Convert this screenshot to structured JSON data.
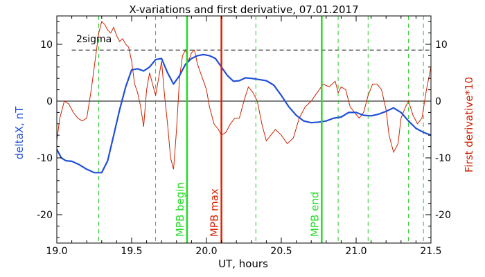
{
  "chart_data": {
    "type": "line",
    "title": "X-variations and first derivative, 07.01.2017",
    "xlabel": "UT, hours",
    "ylabel_left": "deltaX, nT",
    "ylabel_right": "First derivative*10",
    "xlim": [
      19.0,
      21.5
    ],
    "ylim": [
      -25,
      15
    ],
    "x_ticks": [
      {
        "value": 19.0,
        "label": "19.0"
      },
      {
        "value": 19.5,
        "label": "19.5"
      },
      {
        "value": 20.0,
        "label": "20.0"
      },
      {
        "value": 20.5,
        "label": "20.5"
      },
      {
        "value": 21.0,
        "label": "21.0"
      },
      {
        "value": 21.5,
        "label": "21.5"
      }
    ],
    "y_ticks": [
      {
        "value": 10,
        "label": "10"
      },
      {
        "value": 0,
        "label": "0"
      },
      {
        "value": -10,
        "label": "-10"
      },
      {
        "value": -20,
        "label": "-20"
      }
    ],
    "colors": {
      "deltaX": "#1f4fd6",
      "derivative": "#cc2200",
      "mpb_begin": "#22dd22",
      "mpb_max": "#dd2200",
      "mpb_end": "#22dd22",
      "dashed_green": "#22cc22",
      "axis": "#000000"
    },
    "threshold": {
      "label": "2sigma",
      "value": 9.0
    },
    "zero_line": 0,
    "vertical_lines": [
      {
        "label": "MPB begin",
        "x": 19.87,
        "color_key": "mpb_begin"
      },
      {
        "label": "MPB max",
        "x": 20.1,
        "color_key": "mpb_max"
      },
      {
        "label": "MPB end",
        "x": 20.77,
        "color_key": "mpb_end"
      }
    ],
    "dashed_verticals": [
      19.28,
      19.66,
      20.33,
      20.88,
      21.08,
      21.35,
      21.45
    ],
    "series": [
      {
        "key": "deltaX",
        "axis": "left",
        "x": [
          19.0,
          19.03,
          19.06,
          19.1,
          19.15,
          19.2,
          19.25,
          19.3,
          19.34,
          19.38,
          19.42,
          19.46,
          19.5,
          19.54,
          19.58,
          19.62,
          19.66,
          19.7,
          19.74,
          19.78,
          19.82,
          19.86,
          19.9,
          19.94,
          19.98,
          20.02,
          20.06,
          20.1,
          20.14,
          20.18,
          20.22,
          20.26,
          20.3,
          20.35,
          20.4,
          20.45,
          20.5,
          20.55,
          20.6,
          20.65,
          20.7,
          20.75,
          20.8,
          20.85,
          20.9,
          20.95,
          21.0,
          21.05,
          21.1,
          21.15,
          21.2,
          21.25,
          21.3,
          21.35,
          21.4,
          21.45,
          21.5
        ],
        "values": [
          -8.5,
          -10.0,
          -10.5,
          -10.6,
          -11.2,
          -12.0,
          -12.6,
          -12.6,
          -10.5,
          -6.0,
          -1.5,
          2.5,
          5.5,
          5.7,
          5.3,
          6.0,
          7.3,
          7.5,
          5.0,
          3.0,
          4.5,
          6.5,
          7.5,
          8.0,
          8.2,
          8.0,
          7.5,
          6.0,
          4.5,
          3.5,
          3.6,
          4.1,
          4.0,
          3.8,
          3.6,
          2.8,
          1.0,
          -1.0,
          -2.5,
          -3.5,
          -3.8,
          -3.7,
          -3.5,
          -3.0,
          -2.8,
          -2.0,
          -2.0,
          -2.5,
          -2.6,
          -2.3,
          -1.8,
          -1.2,
          -2.0,
          -3.5,
          -4.8,
          -5.5,
          -6.0
        ]
      },
      {
        "key": "derivative",
        "axis": "right",
        "x": [
          19.0,
          19.02,
          19.05,
          19.08,
          19.11,
          19.14,
          19.17,
          19.2,
          19.23,
          19.26,
          19.28,
          19.3,
          19.32,
          19.34,
          19.36,
          19.38,
          19.4,
          19.42,
          19.44,
          19.46,
          19.48,
          19.5,
          19.52,
          19.54,
          19.56,
          19.58,
          19.6,
          19.62,
          19.64,
          19.66,
          19.68,
          19.7,
          19.72,
          19.74,
          19.76,
          19.78,
          19.8,
          19.82,
          19.84,
          19.86,
          19.88,
          19.9,
          19.92,
          19.94,
          19.96,
          19.98,
          20.0,
          20.02,
          20.05,
          20.08,
          20.1,
          20.13,
          20.16,
          20.19,
          20.22,
          20.25,
          20.28,
          20.31,
          20.34,
          20.37,
          20.4,
          20.43,
          20.46,
          20.5,
          20.54,
          20.58,
          20.62,
          20.66,
          20.7,
          20.74,
          20.78,
          20.82,
          20.86,
          20.88,
          20.9,
          20.93,
          20.96,
          20.99,
          21.02,
          21.05,
          21.08,
          21.11,
          21.14,
          21.17,
          21.2,
          21.22,
          21.25,
          21.28,
          21.3,
          21.33,
          21.35,
          21.38,
          21.41,
          21.44,
          21.47,
          21.5
        ],
        "values": [
          -7.0,
          -3.0,
          0.0,
          -0.5,
          -2.0,
          -3.0,
          -3.5,
          -3.0,
          2.0,
          8.0,
          12.0,
          14.0,
          13.5,
          12.5,
          12.0,
          13.0,
          11.5,
          10.5,
          11.0,
          10.0,
          9.5,
          7.0,
          3.0,
          1.5,
          -1.0,
          -4.5,
          2.0,
          5.0,
          3.0,
          1.0,
          4.0,
          7.0,
          1.0,
          -4.0,
          -10.0,
          -12.0,
          -5.0,
          4.0,
          8.0,
          9.0,
          7.0,
          8.5,
          9.0,
          6.5,
          5.0,
          3.5,
          2.0,
          -1.0,
          -4.0,
          -5.0,
          -6.0,
          -5.5,
          -4.0,
          -3.0,
          -3.0,
          0.0,
          2.5,
          1.5,
          0.0,
          -4.0,
          -7.0,
          -6.0,
          -5.0,
          -6.0,
          -7.5,
          -6.5,
          -3.0,
          -1.0,
          0.0,
          1.5,
          3.0,
          2.5,
          3.5,
          1.5,
          2.5,
          2.0,
          -1.0,
          -2.0,
          -3.0,
          -2.0,
          1.0,
          3.0,
          3.0,
          2.0,
          -1.5,
          -6.0,
          -9.0,
          -7.5,
          -3.0,
          -1.0,
          0.0,
          -2.5,
          -4.0,
          -3.0,
          2.0,
          6.0
        ]
      }
    ]
  }
}
